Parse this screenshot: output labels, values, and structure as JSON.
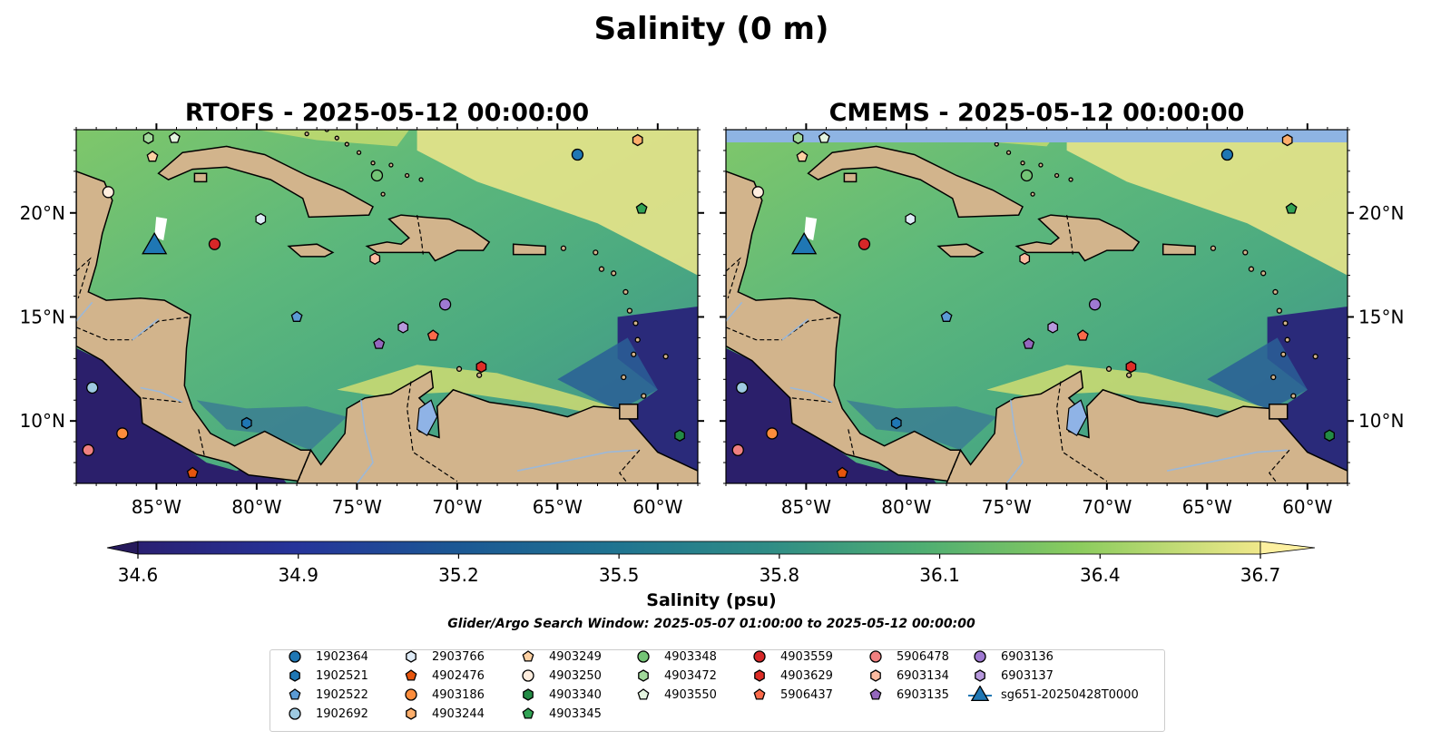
{
  "figure": {
    "title": "Salinity (0 m)",
    "search_window": "Glider/Argo Search Window: 2025-05-07 01:00:00 to 2025-05-12 00:00:00"
  },
  "chart_data": [
    {
      "type": "heatmap",
      "title": "RTOFS - 2025-05-12 00:00:00",
      "x_ticks": [
        "85°W",
        "80°W",
        "75°W",
        "70°W",
        "65°W",
        "60°W"
      ],
      "y_ticks": [
        "20°N",
        "15°N",
        "10°N"
      ],
      "xlim": [
        -89,
        -58
      ],
      "ylim": [
        7,
        24
      ],
      "field": "sea surface salinity (psu)",
      "y_tick_side": "left"
    },
    {
      "type": "heatmap",
      "title": "CMEMS - 2025-05-12 00:00:00",
      "x_ticks": [
        "85°W",
        "80°W",
        "75°W",
        "70°W",
        "65°W",
        "60°W"
      ],
      "y_ticks": [
        "20°N",
        "15°N",
        "10°N"
      ],
      "xlim": [
        -89,
        -58
      ],
      "ylim": [
        7,
        24
      ],
      "field": "sea surface salinity (psu)",
      "y_tick_side": "right"
    }
  ],
  "colorbar": {
    "label": "Salinity (psu)",
    "range": [
      34.6,
      36.7
    ],
    "ticks": [
      "34.6",
      "34.9",
      "35.2",
      "35.5",
      "35.8",
      "36.1",
      "36.4",
      "36.7"
    ],
    "colormap": "haline",
    "extend": "both"
  },
  "stations": [
    {
      "id": "1902364",
      "marker": "circle",
      "color": "#1f77b4",
      "lon": -64.0,
      "lat": 22.8
    },
    {
      "id": "1902521",
      "marker": "hexagon",
      "color": "#1f77b4",
      "lon": -80.5,
      "lat": 9.9
    },
    {
      "id": "1902522",
      "marker": "pentagon",
      "color": "#5b9bd5",
      "lon": -78.0,
      "lat": 15.0
    },
    {
      "id": "1902692",
      "marker": "circle",
      "color": "#9ecae1",
      "lon": -88.2,
      "lat": 11.6
    },
    {
      "id": "2903766",
      "marker": "hexagon",
      "color": "#deebf7",
      "lon": -79.8,
      "lat": 19.7
    },
    {
      "id": "4902476",
      "marker": "pentagon",
      "color": "#e6550d",
      "lon": -83.2,
      "lat": 7.5
    },
    {
      "id": "4903186",
      "marker": "circle",
      "color": "#fd8d3c",
      "lon": -86.7,
      "lat": 9.4
    },
    {
      "id": "4903244",
      "marker": "hexagon",
      "color": "#fdae6b",
      "lon": -61.0,
      "lat": 23.5
    },
    {
      "id": "4903249",
      "marker": "pentagon",
      "color": "#fdd0a2",
      "lon": -85.2,
      "lat": 22.7
    },
    {
      "id": "4903250",
      "marker": "circle",
      "color": "#feedde",
      "lon": -87.4,
      "lat": 21.0
    },
    {
      "id": "4903340",
      "marker": "hexagon",
      "color": "#238b45",
      "lon": -58.9,
      "lat": 9.3
    },
    {
      "id": "4903345",
      "marker": "pentagon",
      "color": "#31a354",
      "lon": -60.8,
      "lat": 20.2
    },
    {
      "id": "4903348",
      "marker": "circle",
      "color": "#74c476",
      "lon": -74.0,
      "lat": 21.8
    },
    {
      "id": "4903472",
      "marker": "hexagon",
      "color": "#a1d99b",
      "lon": -85.4,
      "lat": 23.6
    },
    {
      "id": "4903550",
      "marker": "pentagon",
      "color": "#e5f5e0",
      "lon": -84.1,
      "lat": 23.6
    },
    {
      "id": "4903559",
      "marker": "circle",
      "color": "#d62728",
      "lon": -82.1,
      "lat": 18.5
    },
    {
      "id": "4903629",
      "marker": "hexagon",
      "color": "#de2d26",
      "lon": -68.8,
      "lat": 12.6
    },
    {
      "id": "5906437",
      "marker": "pentagon",
      "color": "#fb6a4a",
      "lon": -71.2,
      "lat": 14.1
    },
    {
      "id": "5906478",
      "marker": "circle",
      "color": "#f08080",
      "lon": -88.4,
      "lat": 8.6
    },
    {
      "id": "6903134",
      "marker": "hexagon",
      "color": "#fcbba1",
      "lon": -74.1,
      "lat": 17.8
    },
    {
      "id": "6903135",
      "marker": "pentagon",
      "color": "#9467bd",
      "lon": -73.9,
      "lat": 13.7
    },
    {
      "id": "6903136",
      "marker": "circle",
      "color": "#9f79d1",
      "lon": -70.6,
      "lat": 15.6
    },
    {
      "id": "6903137",
      "marker": "hexagon",
      "color": "#b799dd",
      "lon": -72.7,
      "lat": 14.5
    },
    {
      "id": "sg651-20250428T0000",
      "marker": "triangle",
      "color": "#1f77b4",
      "lon": -85.1,
      "lat": 18.5
    }
  ]
}
